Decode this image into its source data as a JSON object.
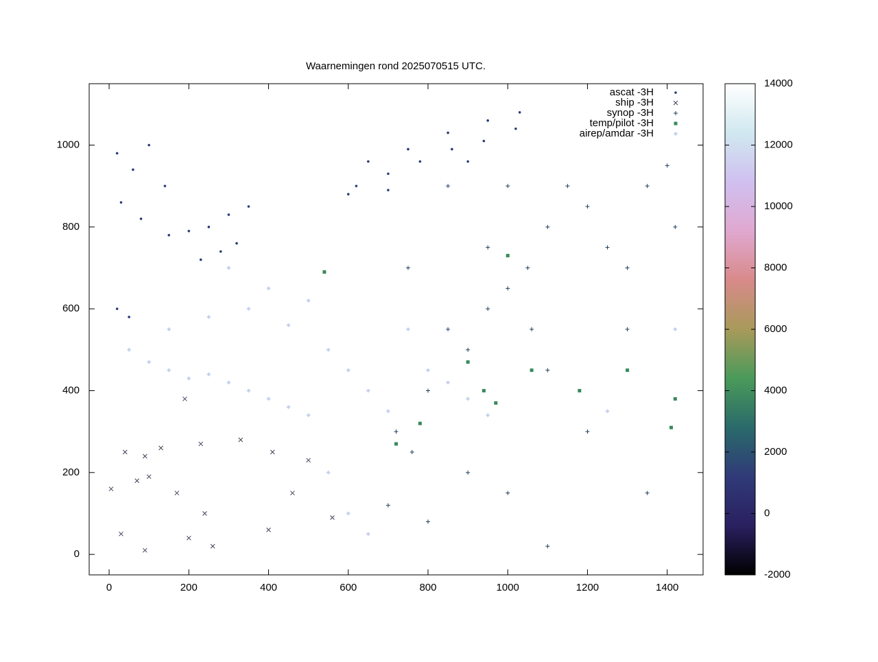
{
  "chart_data": {
    "type": "scatter",
    "title": "Waarnemingen rond 2025070515 UTC.",
    "xlim": [
      -50,
      1490
    ],
    "ylim": [
      -50,
      1150
    ],
    "xticks": [
      0,
      200,
      400,
      600,
      800,
      1000,
      1200,
      1400
    ],
    "yticks": [
      0,
      200,
      400,
      600,
      800,
      1000
    ],
    "zlim": [
      -2000,
      14000
    ],
    "zticks": [
      -2000,
      0,
      2000,
      4000,
      6000,
      8000,
      10000,
      12000,
      14000
    ],
    "colormap": [
      "#000000",
      "#2a2060",
      "#303a78",
      "#2a6a6a",
      "#4a9a5a",
      "#a89a5a",
      "#d88a8a",
      "#e0a8d0",
      "#d0c0f0",
      "#d0e8f0",
      "#ffffff"
    ],
    "legend": "top-right",
    "series": [
      {
        "name": "ascat -3H",
        "color": "#2b3a78",
        "marker": "dot",
        "x": [
          20,
          60,
          100,
          140,
          30,
          80,
          150,
          200,
          250,
          300,
          350,
          230,
          280,
          320,
          20,
          50,
          620,
          700,
          780,
          860,
          940,
          1020,
          650,
          750,
          850,
          950,
          1030,
          700,
          900,
          600
        ],
        "y": [
          980,
          940,
          1000,
          900,
          860,
          820,
          780,
          790,
          800,
          830,
          850,
          720,
          740,
          760,
          600,
          580,
          900,
          930,
          960,
          990,
          1010,
          1040,
          960,
          990,
          1030,
          1060,
          1080,
          890,
          960,
          880
        ]
      },
      {
        "name": "ship -3H",
        "color": "#404058",
        "marker": "x",
        "x": [
          5,
          40,
          70,
          90,
          100,
          130,
          170,
          200,
          240,
          260,
          30,
          90,
          330,
          400,
          460,
          500,
          410,
          190,
          230,
          560
        ],
        "y": [
          160,
          250,
          180,
          240,
          190,
          260,
          150,
          40,
          100,
          20,
          50,
          10,
          280,
          60,
          150,
          230,
          250,
          380,
          270,
          90
        ]
      },
      {
        "name": "synop -3H",
        "color": "#1e3a5f",
        "marker": "plus",
        "x": [
          720,
          760,
          800,
          850,
          900,
          950,
          1000,
          1050,
          1100,
          1150,
          1200,
          1250,
          1300,
          1350,
          1400,
          1420,
          1000,
          900,
          1000,
          1100,
          800,
          700,
          1200,
          1350,
          850,
          950,
          1100,
          1300,
          750,
          1060
        ],
        "y": [
          300,
          250,
          400,
          550,
          500,
          600,
          650,
          700,
          800,
          900,
          850,
          750,
          700,
          900,
          950,
          800,
          900,
          200,
          150,
          20,
          80,
          120,
          300,
          150,
          900,
          750,
          450,
          550,
          700,
          550
        ]
      },
      {
        "name": "temp/pilot -3H",
        "color": "#3a8a5a",
        "marker": "square",
        "x": [
          540,
          900,
          940,
          1300,
          1420,
          1410,
          780,
          1060,
          1000,
          720,
          1180,
          970
        ],
        "y": [
          690,
          470,
          400,
          450,
          380,
          310,
          320,
          450,
          730,
          270,
          400,
          370
        ]
      },
      {
        "name": "airep/amdar -3H",
        "color": "#c6d0f0",
        "marker": "diamond",
        "x": [
          50,
          100,
          150,
          200,
          250,
          300,
          350,
          400,
          450,
          500,
          150,
          250,
          350,
          450,
          550,
          600,
          650,
          700,
          550,
          600,
          650,
          300,
          400,
          500,
          800,
          850,
          900,
          950,
          750,
          1420,
          1250
        ],
        "y": [
          500,
          470,
          450,
          430,
          440,
          420,
          400,
          380,
          360,
          340,
          550,
          580,
          600,
          560,
          500,
          450,
          400,
          350,
          200,
          100,
          50,
          700,
          650,
          620,
          450,
          420,
          380,
          340,
          550,
          550,
          350
        ]
      }
    ]
  }
}
